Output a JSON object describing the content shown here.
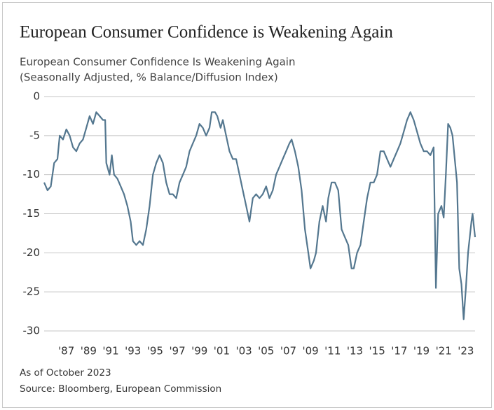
{
  "chart_data": {
    "type": "line",
    "title": "European Consumer Confidence is Weakening Again",
    "subtitle": [
      "European Consumer Confidence Is Weakening Again",
      "(Seasonally Adjusted, % Balance/Diffusion Index)"
    ],
    "notes": [
      "As of October 2023",
      "Source: Bloomberg, European Commission"
    ],
    "color": "#54778f",
    "grid": true,
    "xlim": [
      1985,
      2023.83
    ],
    "ylim": [
      -30,
      0
    ],
    "yticks": [
      0,
      -5,
      -10,
      -15,
      -20,
      -25,
      -30
    ],
    "xticks": [
      {
        "value": 1987,
        "label": "'87"
      },
      {
        "value": 1989,
        "label": "'89"
      },
      {
        "value": 1991,
        "label": "'91"
      },
      {
        "value": 1993,
        "label": "'93"
      },
      {
        "value": 1995,
        "label": "'95"
      },
      {
        "value": 1997,
        "label": "'97"
      },
      {
        "value": 1999,
        "label": "'99"
      },
      {
        "value": 2001,
        "label": "'01"
      },
      {
        "value": 2003,
        "label": "'03"
      },
      {
        "value": 2005,
        "label": "'05"
      },
      {
        "value": 2007,
        "label": "'07"
      },
      {
        "value": 2009,
        "label": "'09"
      },
      {
        "value": 2011,
        "label": "'11"
      },
      {
        "value": 2013,
        "label": "'13"
      },
      {
        "value": 2015,
        "label": "'15"
      },
      {
        "value": 2017,
        "label": "'17"
      },
      {
        "value": 2019,
        "label": "'19"
      },
      {
        "value": 2021,
        "label": "'21"
      },
      {
        "value": 2023,
        "label": "'23"
      }
    ],
    "x": [
      1985.0,
      1985.3,
      1985.6,
      1985.9,
      1986.2,
      1986.4,
      1986.7,
      1987.0,
      1987.3,
      1987.6,
      1987.9,
      1988.2,
      1988.5,
      1988.8,
      1989.1,
      1989.4,
      1989.7,
      1990.0,
      1990.3,
      1990.5,
      1990.6,
      1990.9,
      1991.1,
      1991.3,
      1991.6,
      1991.9,
      1992.2,
      1992.5,
      1992.8,
      1993.0,
      1993.3,
      1993.6,
      1993.9,
      1994.2,
      1994.5,
      1994.8,
      1995.1,
      1995.4,
      1995.7,
      1996.0,
      1996.3,
      1996.6,
      1996.9,
      1997.2,
      1997.5,
      1997.8,
      1998.1,
      1998.4,
      1998.7,
      1999.0,
      1999.3,
      1999.6,
      1999.9,
      2000.1,
      2000.4,
      2000.6,
      2000.9,
      2001.1,
      2001.4,
      2001.7,
      2002.0,
      2002.3,
      2002.6,
      2002.9,
      2003.2,
      2003.5,
      2003.8,
      2004.1,
      2004.4,
      2004.7,
      2005.0,
      2005.3,
      2005.6,
      2005.9,
      2006.2,
      2006.5,
      2006.8,
      2007.1,
      2007.3,
      2007.6,
      2007.9,
      2008.2,
      2008.5,
      2008.8,
      2009.0,
      2009.3,
      2009.5,
      2009.8,
      2010.1,
      2010.4,
      2010.6,
      2010.9,
      2011.2,
      2011.5,
      2011.8,
      2012.1,
      2012.4,
      2012.7,
      2012.9,
      2013.2,
      2013.5,
      2013.8,
      2014.1,
      2014.4,
      2014.7,
      2015.0,
      2015.3,
      2015.6,
      2015.9,
      2016.2,
      2016.5,
      2016.8,
      2017.1,
      2017.4,
      2017.7,
      2018.0,
      2018.3,
      2018.6,
      2018.9,
      2019.2,
      2019.5,
      2019.8,
      2020.1,
      2020.3,
      2020.5,
      2020.8,
      2021.0,
      2021.2,
      2021.4,
      2021.6,
      2021.8,
      2022.0,
      2022.2,
      2022.4,
      2022.6,
      2022.8,
      2023.0,
      2023.2,
      2023.5,
      2023.6,
      2023.83
    ],
    "values": [
      -11,
      -12,
      -11.5,
      -8.5,
      -8,
      -5,
      -5.5,
      -4.2,
      -5,
      -6.5,
      -7,
      -6,
      -5.5,
      -4,
      -2.5,
      -3.5,
      -2,
      -2.5,
      -3,
      -3,
      -8.5,
      -10,
      -7.5,
      -10,
      -10.5,
      -11.5,
      -12.5,
      -14,
      -16,
      -18.5,
      -19,
      -18.5,
      -19,
      -17,
      -14,
      -10,
      -8.5,
      -7.5,
      -8.5,
      -11,
      -12.5,
      -12.5,
      -13,
      -11,
      -10,
      -9,
      -7,
      -6,
      -5,
      -3.5,
      -4,
      -5,
      -4,
      -2,
      -2,
      -2.5,
      -4,
      -3,
      -5,
      -7,
      -8,
      -8,
      -10,
      -12,
      -14,
      -16,
      -13,
      -12.5,
      -13,
      -12.5,
      -11.5,
      -13,
      -12,
      -10,
      -9,
      -8,
      -7,
      -6,
      -5.5,
      -7,
      -9,
      -12,
      -17,
      -20,
      -22,
      -21,
      -20,
      -16,
      -14,
      -16,
      -13,
      -11,
      -11,
      -12,
      -17,
      -18,
      -19,
      -22,
      -22,
      -20,
      -19,
      -16,
      -13,
      -11,
      -11,
      -10,
      -7,
      -7,
      -8,
      -9,
      -8,
      -7,
      -6,
      -4.5,
      -3,
      -2,
      -3,
      -4.5,
      -6,
      -7,
      -7,
      -7.5,
      -6.5,
      -24.5,
      -15,
      -14,
      -15.5,
      -10,
      -3.5,
      -4,
      -5,
      -8,
      -11,
      -22,
      -24,
      -28.5,
      -24.5,
      -20,
      -16,
      -15,
      -18
    ]
  }
}
